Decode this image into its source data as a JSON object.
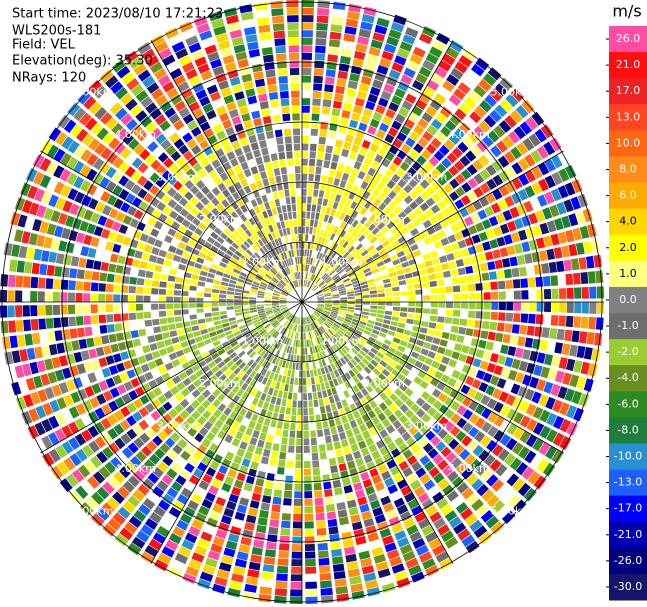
{
  "header": {
    "start_time": "Start time: 2023/08/10 17:21:23",
    "instrument": "WLS200s-181",
    "field": "Field: VEL",
    "elevation": "Elevation(deg): 35.30",
    "nrays": "NRays: 120"
  },
  "colorbar": {
    "unit": "m/s",
    "ticks": [
      {
        "value": 26,
        "label": "26.0"
      },
      {
        "value": 21,
        "label": "21.0"
      },
      {
        "value": 17,
        "label": "17.0"
      },
      {
        "value": 13,
        "label": "13.0"
      },
      {
        "value": 10,
        "label": "10.0"
      },
      {
        "value": 8,
        "label": "8.0"
      },
      {
        "value": 6,
        "label": "6.0"
      },
      {
        "value": 4,
        "label": "4.0"
      },
      {
        "value": 2,
        "label": "2.0"
      },
      {
        "value": 1,
        "label": "1.0"
      },
      {
        "value": 0,
        "label": "0.0"
      },
      {
        "value": -1,
        "label": "-1.0"
      },
      {
        "value": -2,
        "label": "-2.0"
      },
      {
        "value": -4,
        "label": "-4.0"
      },
      {
        "value": -6,
        "label": "-6.0"
      },
      {
        "value": -8,
        "label": "-8.0"
      },
      {
        "value": -10,
        "label": "-10.0"
      },
      {
        "value": -13,
        "label": "-13.0"
      },
      {
        "value": -17,
        "label": "-17.0"
      },
      {
        "value": -21,
        "label": "-21.0"
      },
      {
        "value": -26,
        "label": "-26.0"
      },
      {
        "value": -30,
        "label": "-30.0"
      }
    ],
    "colors": [
      "#ff4da6",
      "#ff0f0f",
      "#ee2222",
      "#ff4422",
      "#ff6611",
      "#ff8c1a",
      "#ffaa00",
      "#ffd700",
      "#ffff00",
      "#ffff80",
      "#808080",
      "#6e6e6e",
      "#9acd32",
      "#6b8e23",
      "#2e8b22",
      "#1e7f3c",
      "#2a8fd0",
      "#1e5fff",
      "#0000ff",
      "#0000b0",
      "#000080",
      "#14146a"
    ]
  },
  "range_rings": [
    {
      "label": "1.00km"
    },
    {
      "label": "2.00km"
    },
    {
      "label": "3.00km"
    },
    {
      "label": "4.00km"
    },
    {
      "label": "5.00km"
    }
  ]
}
